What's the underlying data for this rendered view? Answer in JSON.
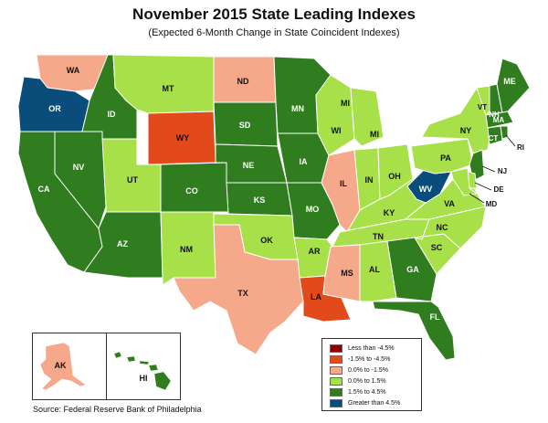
{
  "title": "November 2015 State Leading Indexes",
  "subtitle": "(Expected 6-Month Change in State Coincident Indexes)",
  "source": "Source: Federal Reserve Bank of Philadelphia",
  "colors": {
    "less_than_-4.5": "#8b0000",
    "-1.5_to_-4.5": "#e24a1c",
    "0.0_to_-1.5": "#f6a88a",
    "0.0_to_1.5": "#a8e04a",
    "1.5_to_4.5": "#2f7d1e",
    "greater_than_4.5": "#0b4d7a"
  },
  "legend": [
    {
      "label": "Less than -4.5%",
      "color": "#8b0000"
    },
    {
      "label": "-1.5% to -4.5%",
      "color": "#e24a1c"
    },
    {
      "label": "0.0% to -1.5%",
      "color": "#f6a88a"
    },
    {
      "label": "0.0% to  1.5%",
      "color": "#a8e04a"
    },
    {
      "label": "1.5% to  4.5%",
      "color": "#2f7d1e"
    },
    {
      "label": "Greater than 4.5%",
      "color": "#0b4d7a"
    }
  ],
  "states": [
    {
      "abbr": "WA",
      "category": "0.0_to_-1.5"
    },
    {
      "abbr": "OR",
      "category": "greater_than_4.5"
    },
    {
      "abbr": "CA",
      "category": "1.5_to_4.5"
    },
    {
      "abbr": "NV",
      "category": "1.5_to_4.5"
    },
    {
      "abbr": "ID",
      "category": "1.5_to_4.5"
    },
    {
      "abbr": "MT",
      "category": "0.0_to_1.5"
    },
    {
      "abbr": "WY",
      "category": "-1.5_to_-4.5"
    },
    {
      "abbr": "UT",
      "category": "0.0_to_1.5"
    },
    {
      "abbr": "AZ",
      "category": "1.5_to_4.5"
    },
    {
      "abbr": "CO",
      "category": "1.5_to_4.5"
    },
    {
      "abbr": "NM",
      "category": "0.0_to_1.5"
    },
    {
      "abbr": "ND",
      "category": "0.0_to_-1.5"
    },
    {
      "abbr": "SD",
      "category": "1.5_to_4.5"
    },
    {
      "abbr": "NE",
      "category": "1.5_to_4.5"
    },
    {
      "abbr": "KS",
      "category": "1.5_to_4.5"
    },
    {
      "abbr": "OK",
      "category": "0.0_to_1.5"
    },
    {
      "abbr": "TX",
      "category": "0.0_to_-1.5"
    },
    {
      "abbr": "MN",
      "category": "1.5_to_4.5"
    },
    {
      "abbr": "IA",
      "category": "1.5_to_4.5"
    },
    {
      "abbr": "MO",
      "category": "1.5_to_4.5"
    },
    {
      "abbr": "AR",
      "category": "0.0_to_1.5"
    },
    {
      "abbr": "LA",
      "category": "-1.5_to_-4.5"
    },
    {
      "abbr": "WI",
      "category": "0.0_to_1.5"
    },
    {
      "abbr": "IL",
      "category": "0.0_to_-1.5"
    },
    {
      "abbr": "MI",
      "category": "0.0_to_1.5"
    },
    {
      "abbr": "IN",
      "category": "0.0_to_1.5"
    },
    {
      "abbr": "OH",
      "category": "0.0_to_1.5"
    },
    {
      "abbr": "KY",
      "category": "0.0_to_1.5"
    },
    {
      "abbr": "TN",
      "category": "0.0_to_1.5"
    },
    {
      "abbr": "MS",
      "category": "0.0_to_-1.5"
    },
    {
      "abbr": "AL",
      "category": "0.0_to_1.5"
    },
    {
      "abbr": "GA",
      "category": "1.5_to_4.5"
    },
    {
      "abbr": "FL",
      "category": "1.5_to_4.5"
    },
    {
      "abbr": "SC",
      "category": "0.0_to_1.5"
    },
    {
      "abbr": "NC",
      "category": "0.0_to_1.5"
    },
    {
      "abbr": "VA",
      "category": "0.0_to_1.5"
    },
    {
      "abbr": "WV",
      "category": "greater_than_4.5"
    },
    {
      "abbr": "PA",
      "category": "0.0_to_1.5"
    },
    {
      "abbr": "NY",
      "category": "0.0_to_1.5"
    },
    {
      "abbr": "VT",
      "category": "0.0_to_1.5"
    },
    {
      "abbr": "NH",
      "category": "1.5_to_4.5"
    },
    {
      "abbr": "ME",
      "category": "1.5_to_4.5"
    },
    {
      "abbr": "MA",
      "category": "1.5_to_4.5"
    },
    {
      "abbr": "CT",
      "category": "1.5_to_4.5"
    },
    {
      "abbr": "RI",
      "category": "1.5_to_4.5"
    },
    {
      "abbr": "NJ",
      "category": "1.5_to_4.5"
    },
    {
      "abbr": "DE",
      "category": "0.0_to_1.5"
    },
    {
      "abbr": "MD",
      "category": "0.0_to_1.5"
    },
    {
      "abbr": "AK",
      "category": "0.0_to_-1.5"
    },
    {
      "abbr": "HI",
      "category": "1.5_to_4.5"
    }
  ]
}
